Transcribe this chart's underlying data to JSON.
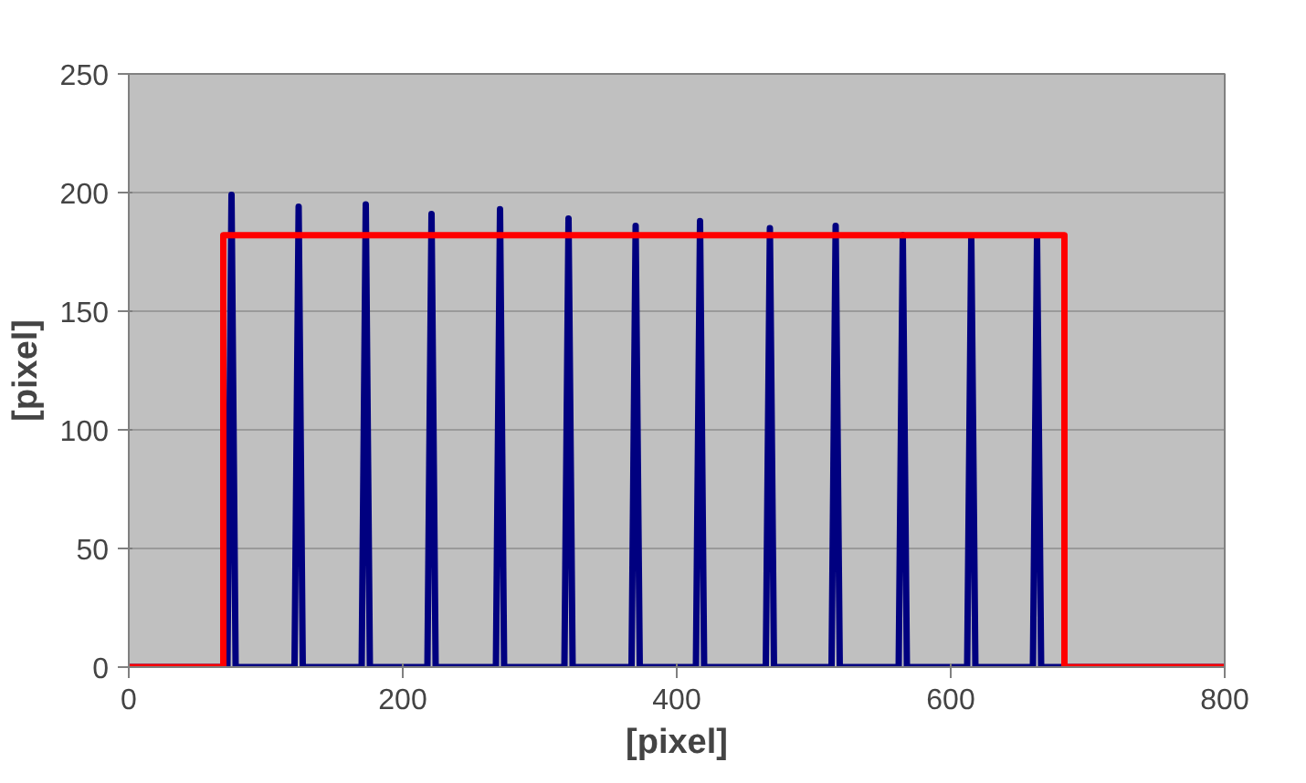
{
  "chart_data": {
    "type": "line",
    "xlabel": "[pixel]",
    "ylabel": "[pixel]",
    "xlim": [
      0,
      800
    ],
    "ylim": [
      0,
      250
    ],
    "xticks": [
      0,
      200,
      400,
      600,
      800
    ],
    "yticks": [
      0,
      50,
      100,
      150,
      200,
      250
    ],
    "grid": "y",
    "marker": "none",
    "line_style": "solid",
    "series": [
      {
        "color": "#000080",
        "x": [
          0,
          72,
          75,
          78,
          121,
          124,
          127,
          170,
          173,
          176,
          218,
          221,
          224,
          268,
          271,
          274,
          318,
          321,
          324,
          367,
          370,
          373,
          414,
          417,
          420,
          465,
          468,
          471,
          513,
          516,
          519,
          562,
          565,
          568,
          612,
          615,
          618,
          660,
          663,
          666,
          800
        ],
        "values": [
          0,
          0,
          199,
          0,
          0,
          194,
          0,
          0,
          195,
          0,
          0,
          191,
          0,
          0,
          193,
          0,
          0,
          189,
          0,
          0,
          186,
          0,
          0,
          188,
          0,
          0,
          185,
          0,
          0,
          186,
          0,
          0,
          182,
          0,
          0,
          181,
          0,
          0,
          181,
          0,
          0
        ]
      },
      {
        "color": "#ff0000",
        "x": [
          0,
          69,
          69,
          683,
          683,
          800
        ],
        "values": [
          0,
          0,
          182,
          182,
          0,
          0
        ]
      }
    ]
  }
}
